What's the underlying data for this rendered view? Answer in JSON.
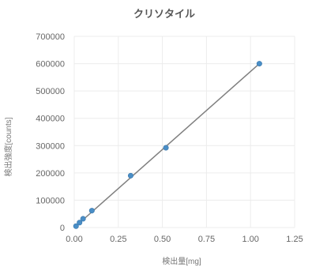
{
  "chart_data": {
    "type": "scatter",
    "title": "クリソタイル",
    "xlabel": "検出量[mg]",
    "ylabel": "検出強度[counts]",
    "xlim": [
      0,
      1.25
    ],
    "ylim": [
      0,
      700000
    ],
    "x_ticks": [
      "0.00",
      "0.25",
      "0.50",
      "0.75",
      "1.00",
      "1.25"
    ],
    "y_ticks": [
      "0",
      "100000",
      "200000",
      "300000",
      "400000",
      "500000",
      "600000",
      "700000"
    ],
    "grid": true,
    "series": [
      {
        "points": [
          {
            "x": 0.01,
            "y": 5000
          },
          {
            "x": 0.03,
            "y": 18000
          },
          {
            "x": 0.05,
            "y": 32000
          },
          {
            "x": 0.1,
            "y": 62000
          },
          {
            "x": 0.32,
            "y": 190000
          },
          {
            "x": 0.52,
            "y": 292000
          },
          {
            "x": 1.05,
            "y": 600000
          }
        ],
        "color": "#4a8ec6"
      }
    ],
    "trendline": {
      "x": [
        0.0,
        1.05
      ],
      "y": [
        0,
        600000
      ],
      "color": "#7f7f7f"
    }
  }
}
